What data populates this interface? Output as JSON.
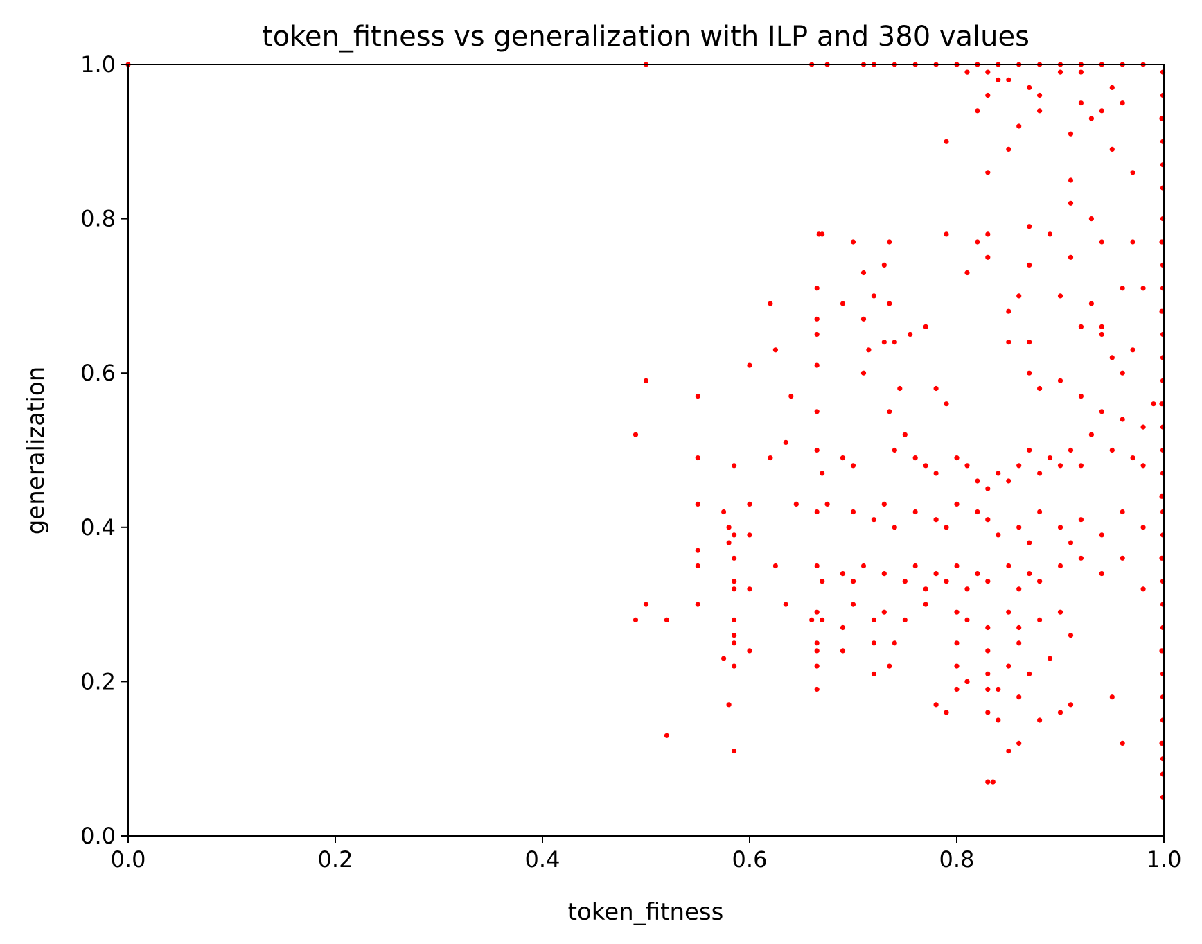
{
  "chart_data": {
    "type": "scatter",
    "title": "token_fitness vs generalization with ILP and 380 values",
    "xlabel": "token_fitness",
    "ylabel": "generalization",
    "xlim": [
      0.0,
      1.0
    ],
    "ylim": [
      0.0,
      1.0
    ],
    "xticks": [
      "0.0",
      "0.2",
      "0.4",
      "0.6",
      "0.8",
      "1.0"
    ],
    "yticks": [
      "0.0",
      "0.2",
      "0.4",
      "0.6",
      "0.8",
      "1.0"
    ],
    "grid": false,
    "marker_color": "#ff0000",
    "series": [
      {
        "points": [
          [
            0.0,
            1.0
          ],
          [
            0.5,
            1.0
          ],
          [
            0.66,
            1.0
          ],
          [
            0.675,
            1.0
          ],
          [
            0.71,
            1.0
          ],
          [
            0.72,
            1.0
          ],
          [
            0.74,
            1.0
          ],
          [
            0.76,
            1.0
          ],
          [
            0.78,
            1.0
          ],
          [
            0.8,
            1.0
          ],
          [
            0.82,
            1.0
          ],
          [
            0.84,
            1.0
          ],
          [
            0.86,
            1.0
          ],
          [
            0.88,
            1.0
          ],
          [
            0.9,
            1.0
          ],
          [
            0.92,
            1.0
          ],
          [
            0.94,
            1.0
          ],
          [
            0.96,
            1.0
          ],
          [
            0.98,
            1.0
          ],
          [
            0.81,
            0.99
          ],
          [
            0.83,
            0.99
          ],
          [
            0.84,
            0.98
          ],
          [
            0.85,
            0.98
          ],
          [
            0.87,
            0.97
          ],
          [
            0.9,
            0.99
          ],
          [
            0.92,
            0.99
          ],
          [
            0.95,
            0.97
          ],
          [
            0.83,
            0.96
          ],
          [
            0.88,
            0.96
          ],
          [
            0.92,
            0.95
          ],
          [
            0.94,
            0.94
          ],
          [
            0.96,
            0.95
          ],
          [
            0.82,
            0.94
          ],
          [
            0.86,
            0.92
          ],
          [
            0.88,
            0.94
          ],
          [
            0.91,
            0.91
          ],
          [
            0.93,
            0.93
          ],
          [
            0.79,
            0.9
          ],
          [
            0.85,
            0.89
          ],
          [
            0.95,
            0.89
          ],
          [
            0.97,
            0.86
          ],
          [
            0.83,
            0.86
          ],
          [
            0.91,
            0.85
          ],
          [
            0.91,
            0.82
          ],
          [
            0.93,
            0.8
          ],
          [
            0.89,
            0.78
          ],
          [
            0.94,
            0.77
          ],
          [
            0.97,
            0.77
          ],
          [
            0.79,
            0.78
          ],
          [
            0.83,
            0.78
          ],
          [
            0.82,
            0.77
          ],
          [
            0.87,
            0.79
          ],
          [
            0.81,
            0.73
          ],
          [
            0.83,
            0.75
          ],
          [
            0.87,
            0.74
          ],
          [
            0.91,
            0.75
          ],
          [
            0.93,
            0.69
          ],
          [
            0.94,
            0.66
          ],
          [
            0.96,
            0.71
          ],
          [
            0.98,
            0.71
          ],
          [
            0.95,
            0.62
          ],
          [
            0.97,
            0.63
          ],
          [
            0.92,
            0.66
          ],
          [
            0.9,
            0.7
          ],
          [
            0.86,
            0.7
          ],
          [
            0.85,
            0.68
          ],
          [
            0.85,
            0.64
          ],
          [
            0.87,
            0.64
          ],
          [
            0.87,
            0.6
          ],
          [
            0.88,
            0.58
          ],
          [
            0.9,
            0.59
          ],
          [
            0.92,
            0.57
          ],
          [
            0.94,
            0.55
          ],
          [
            0.96,
            0.54
          ],
          [
            0.98,
            0.53
          ],
          [
            0.99,
            0.56
          ],
          [
            0.96,
            0.6
          ],
          [
            0.94,
            0.65
          ],
          [
            0.667,
            0.78
          ],
          [
            0.67,
            0.78
          ],
          [
            0.7,
            0.77
          ],
          [
            0.735,
            0.77
          ],
          [
            0.665,
            0.71
          ],
          [
            0.71,
            0.73
          ],
          [
            0.73,
            0.74
          ],
          [
            0.69,
            0.69
          ],
          [
            0.72,
            0.7
          ],
          [
            0.735,
            0.69
          ],
          [
            0.62,
            0.69
          ],
          [
            0.665,
            0.67
          ],
          [
            0.71,
            0.67
          ],
          [
            0.665,
            0.65
          ],
          [
            0.73,
            0.64
          ],
          [
            0.74,
            0.64
          ],
          [
            0.755,
            0.65
          ],
          [
            0.77,
            0.66
          ],
          [
            0.625,
            0.63
          ],
          [
            0.6,
            0.61
          ],
          [
            0.665,
            0.61
          ],
          [
            0.71,
            0.6
          ],
          [
            0.715,
            0.63
          ],
          [
            0.5,
            0.59
          ],
          [
            0.55,
            0.57
          ],
          [
            0.64,
            0.57
          ],
          [
            0.665,
            0.55
          ],
          [
            0.735,
            0.55
          ],
          [
            0.745,
            0.58
          ],
          [
            0.78,
            0.58
          ],
          [
            0.79,
            0.56
          ],
          [
            0.49,
            0.52
          ],
          [
            0.635,
            0.51
          ],
          [
            0.62,
            0.49
          ],
          [
            0.55,
            0.49
          ],
          [
            0.585,
            0.48
          ],
          [
            0.665,
            0.5
          ],
          [
            0.67,
            0.47
          ],
          [
            0.69,
            0.49
          ],
          [
            0.7,
            0.48
          ],
          [
            0.74,
            0.5
          ],
          [
            0.75,
            0.52
          ],
          [
            0.76,
            0.49
          ],
          [
            0.77,
            0.48
          ],
          [
            0.78,
            0.47
          ],
          [
            0.8,
            0.49
          ],
          [
            0.81,
            0.48
          ],
          [
            0.82,
            0.46
          ],
          [
            0.83,
            0.45
          ],
          [
            0.84,
            0.47
          ],
          [
            0.85,
            0.46
          ],
          [
            0.86,
            0.48
          ],
          [
            0.87,
            0.5
          ],
          [
            0.88,
            0.47
          ],
          [
            0.89,
            0.49
          ],
          [
            0.9,
            0.48
          ],
          [
            0.91,
            0.5
          ],
          [
            0.92,
            0.48
          ],
          [
            0.93,
            0.52
          ],
          [
            0.95,
            0.5
          ],
          [
            0.97,
            0.49
          ],
          [
            0.98,
            0.48
          ],
          [
            0.55,
            0.43
          ],
          [
            0.6,
            0.43
          ],
          [
            0.645,
            0.43
          ],
          [
            0.665,
            0.42
          ],
          [
            0.675,
            0.43
          ],
          [
            0.7,
            0.42
          ],
          [
            0.72,
            0.41
          ],
          [
            0.73,
            0.43
          ],
          [
            0.74,
            0.4
          ],
          [
            0.76,
            0.42
          ],
          [
            0.78,
            0.41
          ],
          [
            0.79,
            0.4
          ],
          [
            0.8,
            0.43
          ],
          [
            0.82,
            0.42
          ],
          [
            0.83,
            0.41
          ],
          [
            0.84,
            0.39
          ],
          [
            0.86,
            0.4
          ],
          [
            0.87,
            0.38
          ],
          [
            0.88,
            0.42
          ],
          [
            0.9,
            0.4
          ],
          [
            0.91,
            0.38
          ],
          [
            0.92,
            0.41
          ],
          [
            0.94,
            0.39
          ],
          [
            0.96,
            0.42
          ],
          [
            0.98,
            0.4
          ],
          [
            0.575,
            0.42
          ],
          [
            0.58,
            0.4
          ],
          [
            0.585,
            0.39
          ],
          [
            0.6,
            0.39
          ],
          [
            0.58,
            0.38
          ],
          [
            0.55,
            0.37
          ],
          [
            0.585,
            0.36
          ],
          [
            0.55,
            0.35
          ],
          [
            0.625,
            0.35
          ],
          [
            0.665,
            0.35
          ],
          [
            0.67,
            0.33
          ],
          [
            0.69,
            0.34
          ],
          [
            0.7,
            0.33
          ],
          [
            0.71,
            0.35
          ],
          [
            0.73,
            0.34
          ],
          [
            0.75,
            0.33
          ],
          [
            0.76,
            0.35
          ],
          [
            0.77,
            0.32
          ],
          [
            0.78,
            0.34
          ],
          [
            0.79,
            0.33
          ],
          [
            0.8,
            0.35
          ],
          [
            0.81,
            0.32
          ],
          [
            0.82,
            0.34
          ],
          [
            0.83,
            0.33
          ],
          [
            0.85,
            0.35
          ],
          [
            0.86,
            0.32
          ],
          [
            0.87,
            0.34
          ],
          [
            0.88,
            0.33
          ],
          [
            0.9,
            0.35
          ],
          [
            0.92,
            0.36
          ],
          [
            0.94,
            0.34
          ],
          [
            0.96,
            0.36
          ],
          [
            0.98,
            0.32
          ],
          [
            0.585,
            0.33
          ],
          [
            0.6,
            0.32
          ],
          [
            0.585,
            0.32
          ],
          [
            0.55,
            0.3
          ],
          [
            0.635,
            0.3
          ],
          [
            0.5,
            0.3
          ],
          [
            0.49,
            0.28
          ],
          [
            0.52,
            0.28
          ],
          [
            0.585,
            0.28
          ],
          [
            0.66,
            0.28
          ],
          [
            0.665,
            0.29
          ],
          [
            0.67,
            0.28
          ],
          [
            0.69,
            0.27
          ],
          [
            0.7,
            0.3
          ],
          [
            0.72,
            0.28
          ],
          [
            0.73,
            0.29
          ],
          [
            0.75,
            0.28
          ],
          [
            0.77,
            0.3
          ],
          [
            0.8,
            0.29
          ],
          [
            0.81,
            0.28
          ],
          [
            0.83,
            0.27
          ],
          [
            0.85,
            0.29
          ],
          [
            0.86,
            0.27
          ],
          [
            0.88,
            0.28
          ],
          [
            0.9,
            0.29
          ],
          [
            0.91,
            0.26
          ],
          [
            0.585,
            0.26
          ],
          [
            0.585,
            0.25
          ],
          [
            0.665,
            0.25
          ],
          [
            0.665,
            0.24
          ],
          [
            0.69,
            0.24
          ],
          [
            0.72,
            0.25
          ],
          [
            0.74,
            0.25
          ],
          [
            0.8,
            0.25
          ],
          [
            0.83,
            0.24
          ],
          [
            0.86,
            0.25
          ],
          [
            0.575,
            0.23
          ],
          [
            0.6,
            0.24
          ],
          [
            0.585,
            0.22
          ],
          [
            0.665,
            0.22
          ],
          [
            0.735,
            0.22
          ],
          [
            0.72,
            0.21
          ],
          [
            0.8,
            0.22
          ],
          [
            0.81,
            0.2
          ],
          [
            0.83,
            0.21
          ],
          [
            0.85,
            0.22
          ],
          [
            0.87,
            0.21
          ],
          [
            0.89,
            0.23
          ],
          [
            0.665,
            0.19
          ],
          [
            0.8,
            0.19
          ],
          [
            0.81,
            0.2
          ],
          [
            0.84,
            0.19
          ],
          [
            0.83,
            0.19
          ],
          [
            0.58,
            0.17
          ],
          [
            0.78,
            0.17
          ],
          [
            0.86,
            0.18
          ],
          [
            0.95,
            0.18
          ],
          [
            0.83,
            0.16
          ],
          [
            0.79,
            0.16
          ],
          [
            0.84,
            0.15
          ],
          [
            0.88,
            0.15
          ],
          [
            0.9,
            0.16
          ],
          [
            0.91,
            0.17
          ],
          [
            0.52,
            0.13
          ],
          [
            0.86,
            0.12
          ],
          [
            0.96,
            0.12
          ],
          [
            0.585,
            0.11
          ],
          [
            0.85,
            0.11
          ],
          [
            0.83,
            0.07
          ],
          [
            0.835,
            0.07
          ],
          [
            0.999,
            0.99
          ],
          [
            0.999,
            0.96
          ],
          [
            0.998,
            0.93
          ],
          [
            0.999,
            0.9
          ],
          [
            0.999,
            0.87
          ],
          [
            0.999,
            0.84
          ],
          [
            0.999,
            0.8
          ],
          [
            0.998,
            0.77
          ],
          [
            0.999,
            0.74
          ],
          [
            0.999,
            0.71
          ],
          [
            0.998,
            0.68
          ],
          [
            0.999,
            0.65
          ],
          [
            0.999,
            0.62
          ],
          [
            0.999,
            0.59
          ],
          [
            0.998,
            0.56
          ],
          [
            0.999,
            0.53
          ],
          [
            0.999,
            0.5
          ],
          [
            0.999,
            0.47
          ],
          [
            0.998,
            0.44
          ],
          [
            0.999,
            0.42
          ],
          [
            0.999,
            0.39
          ],
          [
            0.998,
            0.36
          ],
          [
            0.999,
            0.33
          ],
          [
            0.999,
            0.3
          ],
          [
            0.999,
            0.27
          ],
          [
            0.998,
            0.24
          ],
          [
            0.999,
            0.21
          ],
          [
            0.999,
            0.18
          ],
          [
            0.999,
            0.15
          ],
          [
            0.998,
            0.12
          ],
          [
            0.999,
            0.1
          ],
          [
            0.999,
            0.08
          ],
          [
            0.999,
            0.05
          ]
        ]
      }
    ]
  }
}
